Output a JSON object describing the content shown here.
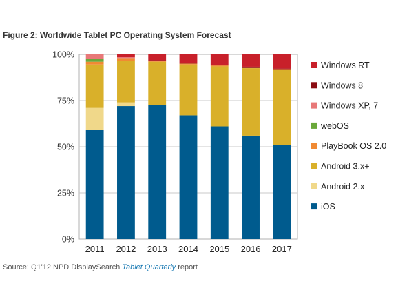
{
  "title": "Figure 2: Worldwide Tablet PC Operating System Forecast",
  "source": {
    "prefix": "Source: Q1'12 NPD DisplaySearch ",
    "italic": "Tablet Quarterly",
    "suffix": " report"
  },
  "chart_data": {
    "type": "bar",
    "stacked": true,
    "categories": [
      "2011",
      "2012",
      "2013",
      "2014",
      "2015",
      "2016",
      "2017"
    ],
    "yticks": [
      "0%",
      "25%",
      "50%",
      "75%",
      "100%"
    ],
    "ylim": [
      0,
      100
    ],
    "grid": true,
    "legend_position": "right",
    "series": [
      {
        "name": "iOS",
        "color": "#005b8e",
        "values": [
          59,
          72,
          72.5,
          67,
          61,
          56,
          51
        ]
      },
      {
        "name": "Android 2.x",
        "color": "#f0d88a",
        "values": [
          12,
          2,
          0,
          0,
          0,
          0,
          0
        ]
      },
      {
        "name": "Android 3.x+",
        "color": "#d9b02a",
        "values": [
          23.5,
          22.5,
          23.5,
          27.5,
          32.5,
          36.5,
          40.5
        ]
      },
      {
        "name": "PlayBook OS 2.0",
        "color": "#f08a33",
        "values": [
          1.5,
          1.5,
          0.5,
          0.5,
          0.5,
          0.5,
          0.5
        ]
      },
      {
        "name": "webOS",
        "color": "#6aa83a",
        "values": [
          1.5,
          0,
          0,
          0,
          0,
          0,
          0
        ]
      },
      {
        "name": "Windows XP, 7",
        "color": "#e87878",
        "values": [
          2.5,
          0.5,
          0,
          0,
          0,
          0,
          0
        ]
      },
      {
        "name": "Windows 8",
        "color": "#8b0d12",
        "values": [
          0,
          0,
          0.3,
          0.3,
          0.3,
          0.3,
          0.3
        ]
      },
      {
        "name": "Windows RT",
        "color": "#c8202a",
        "values": [
          0,
          1.5,
          3.2,
          4.7,
          5.7,
          6.7,
          7.7
        ]
      }
    ],
    "legend_order": [
      "Windows RT",
      "Windows 8",
      "Windows XP, 7",
      "webOS",
      "PlayBook OS 2.0",
      "Android 3.x+",
      "Android 2.x",
      "iOS"
    ]
  }
}
